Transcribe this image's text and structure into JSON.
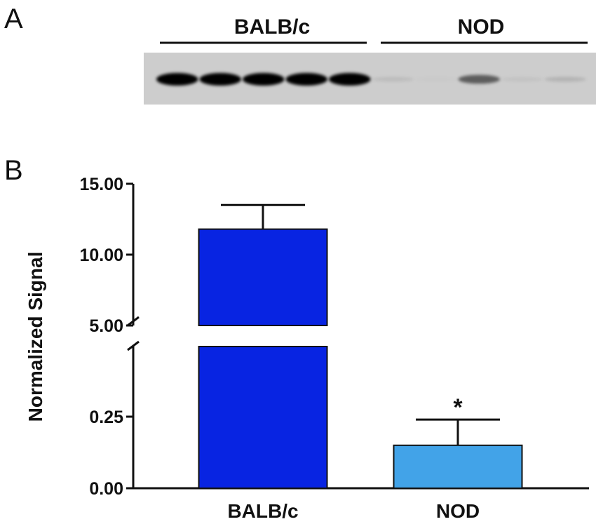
{
  "panels": {
    "a_label": "A",
    "b_label": "B"
  },
  "blot": {
    "groups": [
      {
        "name": "BALB/c"
      },
      {
        "name": "NOD"
      }
    ],
    "band_intensities": [
      1.0,
      1.0,
      1.0,
      1.0,
      1.0,
      0.08,
      0.02,
      0.55,
      0.05,
      0.12
    ]
  },
  "chart_data": {
    "type": "bar",
    "ylabel": "Normalized Signal",
    "categories": [
      "BALB/c",
      "NOD"
    ],
    "series": [
      {
        "values": [
          11.8,
          0.15
        ],
        "errors": [
          1.7,
          0.09
        ],
        "colors": [
          "#0824e2",
          "#42a3e8"
        ]
      }
    ],
    "broken_axis": {
      "lower_range": [
        0,
        0.25
      ],
      "upper_range": [
        5,
        15
      ],
      "lower_ticks": [
        "0.00",
        "0.25"
      ],
      "upper_ticks": [
        "5.00",
        "10.00",
        "15.00"
      ]
    },
    "annotations": [
      {
        "category": "NOD",
        "text": "*"
      }
    ],
    "grid": false,
    "legend": "none"
  }
}
